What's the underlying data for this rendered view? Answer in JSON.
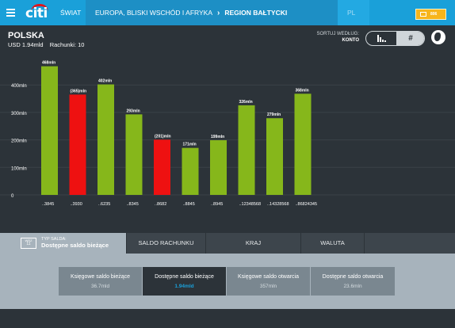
{
  "topbar": {
    "logo": "citi",
    "breadcrumbs": [
      {
        "label": "ŚWIAT"
      },
      {
        "label": "EUROPA, BLISKI WSCHÓD I AFRYKA"
      },
      {
        "label": "REGION BAŁTYCKI"
      },
      {
        "label": "PL"
      }
    ],
    "badge_number": "806",
    "badge_icon": "calendar-icon",
    "menu_icon": "hamburger-icon"
  },
  "header": {
    "title": "POLSKA",
    "total": "USD 1.94mld",
    "accounts": "Rachunki: 10",
    "sort_label": "SORTUJ WEDŁUG:",
    "sort_value": "KONTO",
    "toggle_hash": "#"
  },
  "colors": {
    "accent": "#1aa0d9",
    "positive": "#86b71b",
    "negative": "#ee1111",
    "badge": "#f7b51b"
  },
  "chart_data": {
    "type": "bar",
    "categories": [
      "..3845",
      "..3930",
      "..6235",
      "..8345",
      "..8682",
      "..8845",
      "..8945",
      "..12348568",
      "..14328568",
      "..86824345"
    ],
    "values": [
      468,
      365,
      402,
      293,
      201,
      171,
      199,
      326,
      279,
      368
    ],
    "data_labels": [
      "468mln",
      "(365)mln",
      "402mln",
      "293mln",
      "(201)mln",
      "171mln",
      "199mln",
      "326mln",
      "279mln",
      "368mln"
    ],
    "colors": [
      "positive",
      "negative",
      "positive",
      "positive",
      "negative",
      "positive",
      "positive",
      "positive",
      "positive",
      "positive"
    ],
    "yticks": [
      0,
      100,
      200,
      300,
      400
    ],
    "ytick_labels": [
      "0",
      "100mln",
      "200mln",
      "300mln",
      "400mln"
    ],
    "ylim": [
      0,
      490
    ],
    "grid": true,
    "title": "",
    "xlabel": "",
    "ylabel": ""
  },
  "tabs": [
    {
      "label": "SALDO RACHUNKU"
    },
    {
      "label": "KRAJ"
    },
    {
      "label": "WALUTA"
    }
  ],
  "active_tab": {
    "icon_text": "WRZ",
    "icon_number": "11",
    "small_label": "TYP SALDA:",
    "label": "Dostępne saldo bieżące"
  },
  "cards": [
    {
      "title": "Księgowe saldo bieżące",
      "value": "36.7mld"
    },
    {
      "title": "Dostępne saldo bieżące",
      "value": "1.94mld"
    },
    {
      "title": "Księgowe saldo otwarcia",
      "value": "357mln"
    },
    {
      "title": "Dostępne saldo otwarcia",
      "value": "23.6mln"
    }
  ]
}
